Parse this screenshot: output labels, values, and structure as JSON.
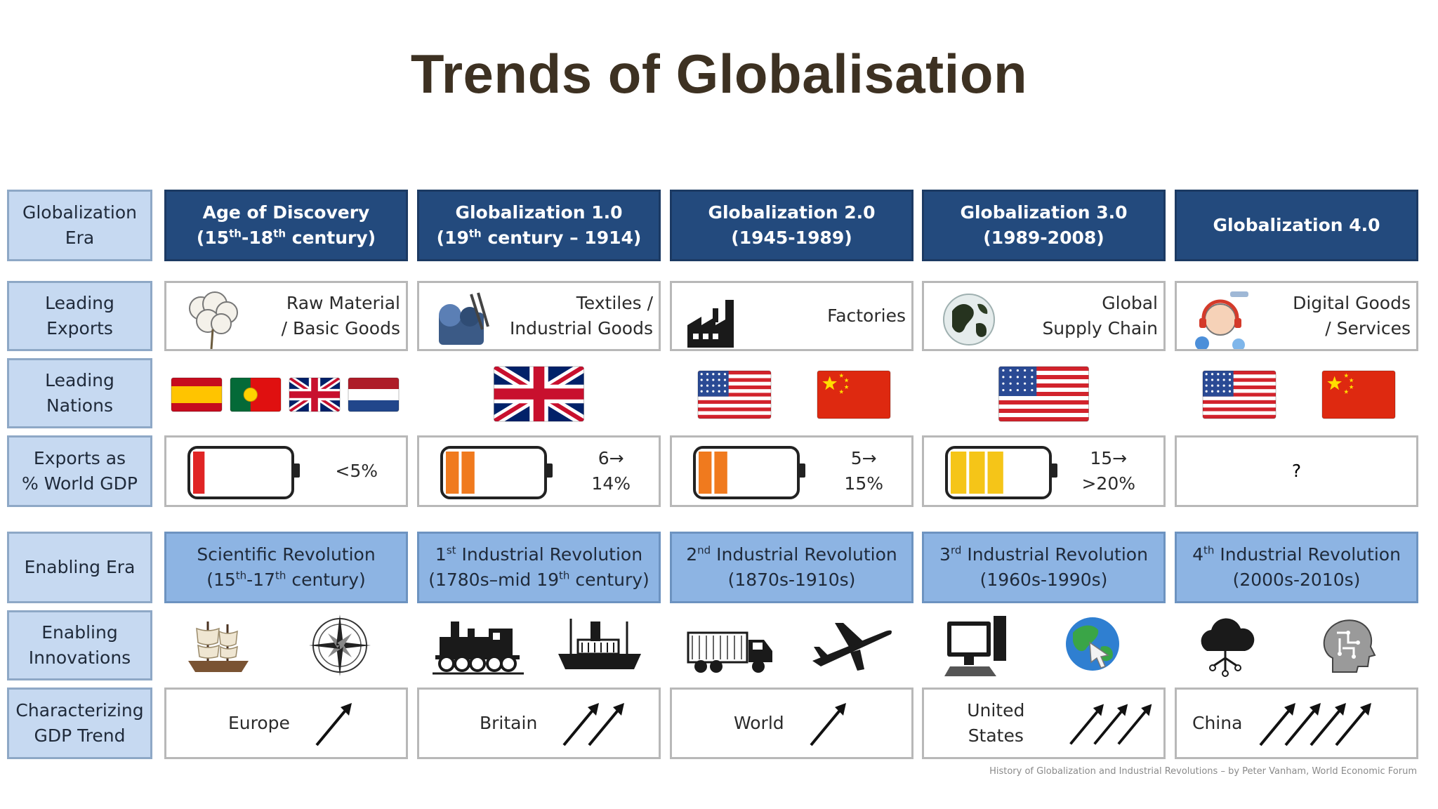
{
  "title": "Trends of Globalisation",
  "colors": {
    "title": "#3d3122",
    "header_bg": "#234a7d",
    "label_bg": "#c6d9f1",
    "enabling_bg": "#8db4e3",
    "battery_red": "#e02525",
    "battery_orange": "#f07a1e",
    "battery_yellow": "#f5c518"
  },
  "row_labels": {
    "era": [
      "Globalization",
      "Era"
    ],
    "exports": [
      "Leading",
      "Exports"
    ],
    "nations": [
      "Leading",
      "Nations"
    ],
    "gdp_share": [
      "Exports as",
      "% World GDP"
    ],
    "enabling_era": "Enabling Era",
    "innovations": [
      "Enabling",
      "Innovations"
    ],
    "trend": [
      "Characterizing",
      "GDP Trend"
    ]
  },
  "eras": [
    {
      "header": [
        "Age of Discovery",
        "(15th-18th century)"
      ],
      "export": [
        "Raw Material",
        "/ Basic Goods"
      ],
      "export_icon": "cotton-icon",
      "nations": [
        "Spain",
        "Portugal",
        "United Kingdom",
        "Netherlands"
      ],
      "share": [
        "<5%"
      ],
      "battery_color": "#e02525",
      "battery_level": 0.12,
      "enabling": [
        "Scientific Revolution",
        "(15th-17th century)"
      ],
      "innovations": [
        "ship-icon",
        "compass-icon"
      ],
      "trend_region": "Europe",
      "trend_arrows": 1
    },
    {
      "header": [
        "Globalization 1.0",
        "(19th century – 1914)"
      ],
      "export": [
        "Textiles /",
        "Industrial Goods"
      ],
      "export_icon": "textile-icon",
      "nations": [
        "United Kingdom"
      ],
      "share": [
        "6→",
        "14%"
      ],
      "battery_color": "#f07a1e",
      "battery_level": 0.3,
      "enabling": [
        "1st Industrial Revolution",
        "(1780s–mid 19th century)"
      ],
      "innovations": [
        "locomotive-icon",
        "steamship-icon"
      ],
      "trend_region": "Britain",
      "trend_arrows": 2
    },
    {
      "header": [
        "Globalization 2.0",
        "(1945-1989)"
      ],
      "export": [
        "Factories"
      ],
      "export_icon": "factory-icon",
      "nations": [
        "United States",
        "China"
      ],
      "share": [
        "5→",
        "15%"
      ],
      "battery_color": "#f07a1e",
      "battery_level": 0.3,
      "enabling": [
        "2nd Industrial Revolution",
        "(1870s-1910s)"
      ],
      "innovations": [
        "truck-icon",
        "airplane-icon"
      ],
      "trend_region": "World",
      "trend_arrows": 1
    },
    {
      "header": [
        "Globalization 3.0",
        "(1989-2008)"
      ],
      "export": [
        "Global",
        "Supply Chain"
      ],
      "export_icon": "globe-network-icon",
      "nations": [
        "United States"
      ],
      "share": [
        "15→",
        ">20%"
      ],
      "battery_color": "#f5c518",
      "battery_level": 0.55,
      "enabling": [
        "3rd Industrial Revolution",
        "(1960s-1990s)"
      ],
      "innovations": [
        "computer-icon",
        "internet-globe-icon"
      ],
      "trend_region": "United States",
      "trend_arrows": 3
    },
    {
      "header": [
        "Globalization 4.0"
      ],
      "export": [
        "Digital Goods",
        "/ Services"
      ],
      "export_icon": "digital-services-icon",
      "nations": [
        "United States",
        "China"
      ],
      "share": [
        "?"
      ],
      "battery_color": "",
      "battery_level": null,
      "enabling": [
        "4th Industrial Revolution",
        "(2000s-2010s)"
      ],
      "innovations": [
        "cloud-icon",
        "ai-head-icon"
      ],
      "trend_region": "China",
      "trend_arrows": 4
    }
  ],
  "footer": "History of Globalization and Industrial Revolutions – by Peter Vanham, World Economic Forum"
}
